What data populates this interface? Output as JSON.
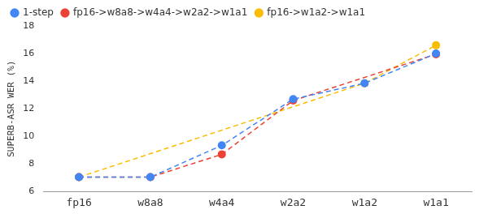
{
  "chart_data": {
    "type": "line",
    "y_label": "SUPERB-ASR WER (%)",
    "categories": [
      "fp16",
      "w8a8",
      "w4a4",
      "w2a2",
      "w1a2",
      "w1a1"
    ],
    "series": [
      {
        "name": "1-step",
        "color": "#4285f4",
        "marker": "circle",
        "line_style": "dashed",
        "values": [
          7.05,
          7.05,
          9.35,
          12.7,
          13.85,
          16.0
        ]
      },
      {
        "name": "fp16->w8a8->w4a4->w2a2->w1a1",
        "color": "#ea4335",
        "marker": "circle",
        "line_style": "dashed",
        "values": [
          7.05,
          7.05,
          8.7,
          12.6,
          null,
          15.95
        ]
      },
      {
        "name": "fp16->w1a2->w1a1",
        "color": "#fbbc04",
        "marker": "circle",
        "line_style": "dashed",
        "values": [
          7.05,
          null,
          null,
          null,
          13.85,
          16.6
        ]
      }
    ],
    "ylim": [
      6,
      18
    ],
    "yticks": [
      6,
      8,
      10,
      12,
      14,
      16,
      18
    ],
    "grid": false,
    "legend": "top-left"
  }
}
